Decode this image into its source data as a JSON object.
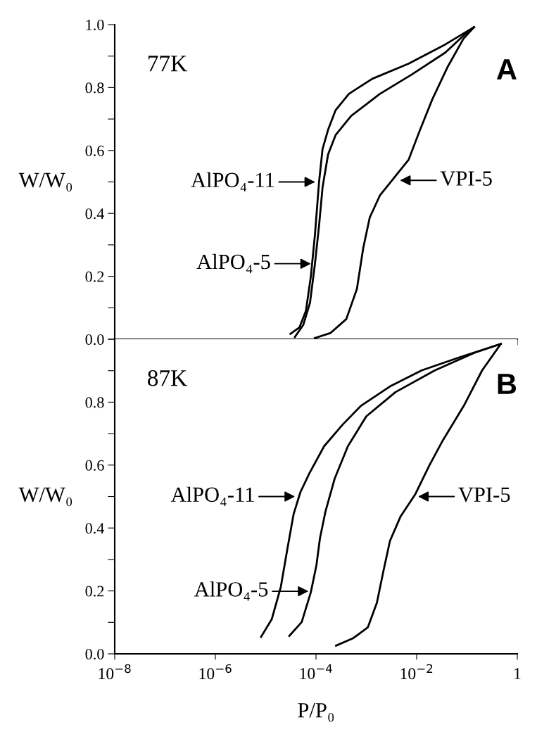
{
  "chart_data": [
    {
      "type": "line",
      "ylabel": "W/W₀",
      "log": "x",
      "tick_labels": "y",
      "xlim": [
        1e-08,
        1
      ],
      "xticks": [
        1e-08,
        1e-06,
        0.0001,
        0.01,
        1
      ],
      "ylim": [
        0,
        1.0
      ],
      "yticks": [
        {
          "value": 0,
          "label": "0.0"
        },
        {
          "value": 0.1,
          "label": null
        },
        {
          "value": 0.2,
          "label": "0.2"
        },
        {
          "value": 0.3,
          "label": null
        },
        {
          "value": 0.4,
          "label": "0.4"
        },
        {
          "value": 0.5,
          "label": null
        },
        {
          "value": 0.6,
          "label": "0.6"
        },
        {
          "value": 0.7,
          "label": null
        },
        {
          "value": 0.8,
          "label": "0.8"
        },
        {
          "value": 0.9,
          "label": null
        },
        {
          "value": 1.0,
          "label": "1.0"
        }
      ],
      "annotations": [
        "77K",
        "A",
        {
          "text": "AlPO₄-11",
          "x": 0.000115,
          "y": 0.5
        },
        {
          "text": "AlPO₄-5",
          "x": 9.5e-05,
          "y": 0.24
        },
        {
          "text": "VPI-5",
          "x": 0.0039,
          "y": 0.505
        }
      ],
      "series": [
        {
          "color": "#000000",
          "x": [
            3.1e-05,
            4.7e-05,
            6.3e-05,
            7.9e-05,
            9.5e-05,
            0.000115,
            0.000135,
            0.000174,
            0.000245,
            0.00045,
            0.00132,
            0.0069,
            0.037,
            0.138
          ],
          "values": [
            0.017,
            0.038,
            0.09,
            0.2,
            0.33,
            0.5,
            0.605,
            0.666,
            0.728,
            0.78,
            0.828,
            0.876,
            0.937,
            0.992
          ]
        },
        {
          "color": "#000000",
          "x": [
            3.8e-05,
            5.6e-05,
            7.6e-05,
            9.5e-05,
            0.000115,
            0.000135,
            0.000174,
            0.000245,
            0.0005,
            0.00186,
            0.0079,
            0.037,
            0.095,
            0.138
          ],
          "values": [
            0.007,
            0.046,
            0.116,
            0.238,
            0.361,
            0.483,
            0.588,
            0.649,
            0.71,
            0.78,
            0.841,
            0.911,
            0.972,
            0.992
          ]
        },
        {
          "color": "#000000",
          "x": [
            9.5e-05,
            0.000195,
            0.0004,
            0.00065,
            0.00087,
            0.00117,
            0.00186,
            0.0034,
            0.0069,
            0.0112,
            0.0204,
            0.0417,
            0.085,
            0.138
          ],
          "values": [
            0.004,
            0.02,
            0.064,
            0.16,
            0.291,
            0.387,
            0.457,
            0.509,
            0.57,
            0.658,
            0.762,
            0.867,
            0.955,
            0.992
          ]
        }
      ]
    },
    {
      "type": "line",
      "ylabel": "W/W₀",
      "xlabel": "P/P₀",
      "log": "x",
      "xlim": [
        1e-08,
        1
      ],
      "xticks": [
        {
          "value": 1e-08,
          "label": "10$^{−8}$"
        },
        {
          "value": 1e-06,
          "label": "10$^{−6}$"
        },
        {
          "value": 0.0001,
          "label": "10$^{−4}$"
        },
        {
          "value": 0.01,
          "label": "10$^{−2}$"
        },
        1
      ],
      "ylim": [
        0,
        1.0
      ],
      "yticks": [
        {
          "value": 0,
          "label": "0.0"
        },
        {
          "value": 0.1,
          "label": null
        },
        {
          "value": 0.2,
          "label": "0.2"
        },
        {
          "value": 0.3,
          "label": null
        },
        {
          "value": 0.4,
          "label": "0.4"
        },
        {
          "value": 0.5,
          "label": null
        },
        {
          "value": 0.6,
          "label": "0.6"
        },
        {
          "value": 0.7,
          "label": null
        },
        {
          "value": 0.8,
          "label": "0.8"
        },
        {
          "value": 0.9,
          "label": null
        },
        {
          "value": 1.0,
          "label": null
        }
      ],
      "annotations": [
        "87K",
        "B",
        {
          "text": "AlPO₄-11",
          "x": 4.6e-05,
          "y": 0.5
        },
        {
          "text": "AlPO₄-5",
          "x": 8.5e-05,
          "y": 0.199
        },
        {
          "text": "VPI-5",
          "x": 0.0089,
          "y": 0.5
        }
      ],
      "series": [
        {
          "color": "#000000",
          "x": [
            8.1e-06,
            1.32e-05,
            2e-05,
            2.7e-05,
            3.6e-05,
            4.9e-05,
            7.4e-05,
            0.000145,
            0.00034,
            0.00079,
            0.00295,
            0.0126,
            0.076,
            0.47
          ],
          "values": [
            0.054,
            0.11,
            0.213,
            0.334,
            0.445,
            0.514,
            0.574,
            0.66,
            0.729,
            0.789,
            0.85,
            0.901,
            0.944,
            0.985
          ]
        },
        {
          "color": "#000000",
          "x": [
            2.95e-05,
            5.2e-05,
            7.9e-05,
            0.000102,
            0.00012,
            0.000155,
            0.000235,
            0.00043,
            0.001,
            0.0038,
            0.023,
            0.141,
            0.47
          ],
          "values": [
            0.057,
            0.101,
            0.196,
            0.282,
            0.368,
            0.454,
            0.557,
            0.66,
            0.755,
            0.832,
            0.901,
            0.957,
            0.985
          ]
        },
        {
          "color": "#000000",
          "x": [
            0.00025,
            0.00055,
            0.00107,
            0.00162,
            0.0022,
            0.00295,
            0.0048,
            0.0093,
            0.018,
            0.033,
            0.087,
            0.2,
            0.47
          ],
          "values": [
            0.026,
            0.05,
            0.084,
            0.162,
            0.265,
            0.359,
            0.437,
            0.506,
            0.6,
            0.678,
            0.789,
            0.901,
            0.985
          ]
        }
      ]
    }
  ]
}
